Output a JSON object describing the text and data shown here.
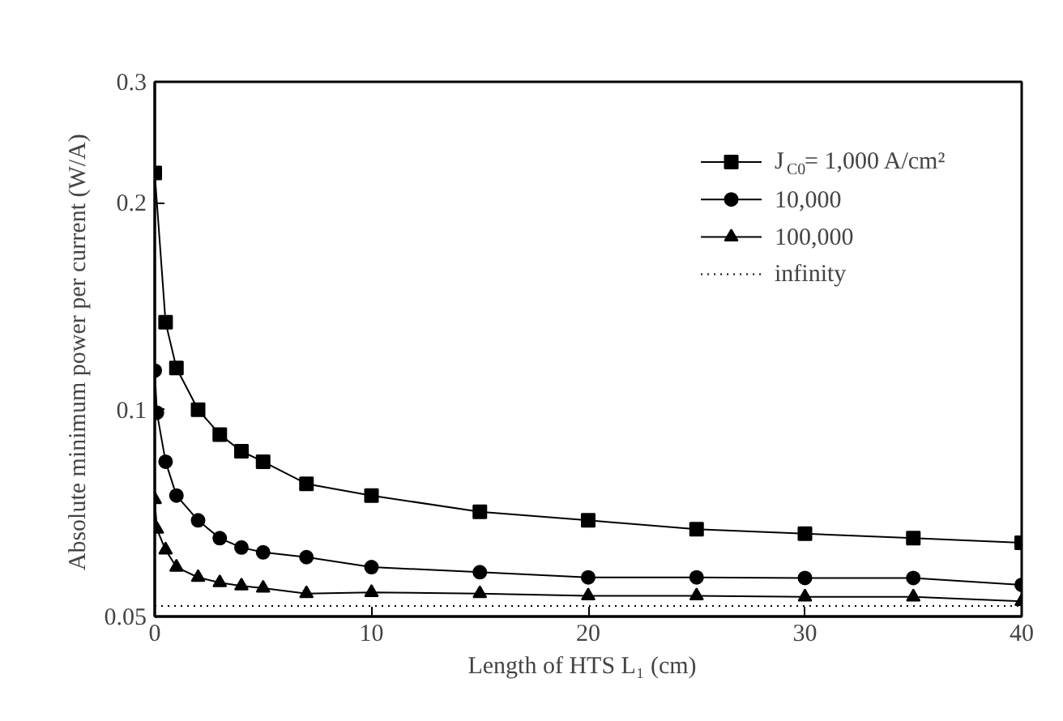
{
  "chart_data": {
    "type": "line",
    "xlabel": "Length of HTS  L₁  (cm)",
    "ylabel": "Absolute minimum power per current  (W/A)",
    "log": "y",
    "xlim": [
      0,
      40
    ],
    "ylim": [
      0.05,
      0.3
    ],
    "xticks": [
      0,
      10,
      20,
      30,
      40
    ],
    "yticks": [
      0.05,
      0.1,
      0.2,
      0.3
    ],
    "grid": false,
    "legend": "top right",
    "series": [
      {
        "name": "J$_{C0}$= 1,000 A/cm²",
        "color": "#000000",
        "marker": "square",
        "line_style": "solid",
        "x": [
          0,
          0.5,
          1,
          2,
          3,
          4,
          5,
          7,
          10,
          15,
          20,
          25,
          30,
          35,
          40
        ],
        "values": [
          0.221,
          0.134,
          0.115,
          0.1,
          0.092,
          0.087,
          0.084,
          0.078,
          0.075,
          0.071,
          0.069,
          0.067,
          0.066,
          0.065,
          0.064
        ]
      },
      {
        "name": "10,000",
        "color": "#000000",
        "marker": "circle",
        "line_style": "solid",
        "x": [
          0,
          0.1,
          0.5,
          1,
          2,
          3,
          4,
          5,
          7,
          10,
          15,
          20,
          25,
          30,
          35,
          40
        ],
        "values": [
          0.114,
          0.099,
          0.084,
          0.075,
          0.069,
          0.065,
          0.063,
          0.062,
          0.061,
          0.059,
          0.058,
          0.057,
          0.057,
          0.0569,
          0.0569,
          0.0556
        ]
      },
      {
        "name": "100,000",
        "color": "#000000",
        "marker": "triangle",
        "line_style": "solid",
        "x": [
          0,
          0.1,
          0.5,
          1,
          2,
          3,
          4,
          5,
          7,
          10,
          15,
          20,
          25,
          30,
          35,
          40
        ],
        "values": [
          0.074,
          0.067,
          0.0625,
          0.059,
          0.057,
          0.056,
          0.0554,
          0.055,
          0.054,
          0.0542,
          0.054,
          0.0536,
          0.0536,
          0.0534,
          0.0534,
          0.0526
        ]
      },
      {
        "name": "infinity",
        "color": "#000000",
        "marker": "none",
        "line_style": "dotted",
        "x": [
          0,
          40
        ],
        "values": [
          0.0518,
          0.0518
        ]
      }
    ]
  }
}
